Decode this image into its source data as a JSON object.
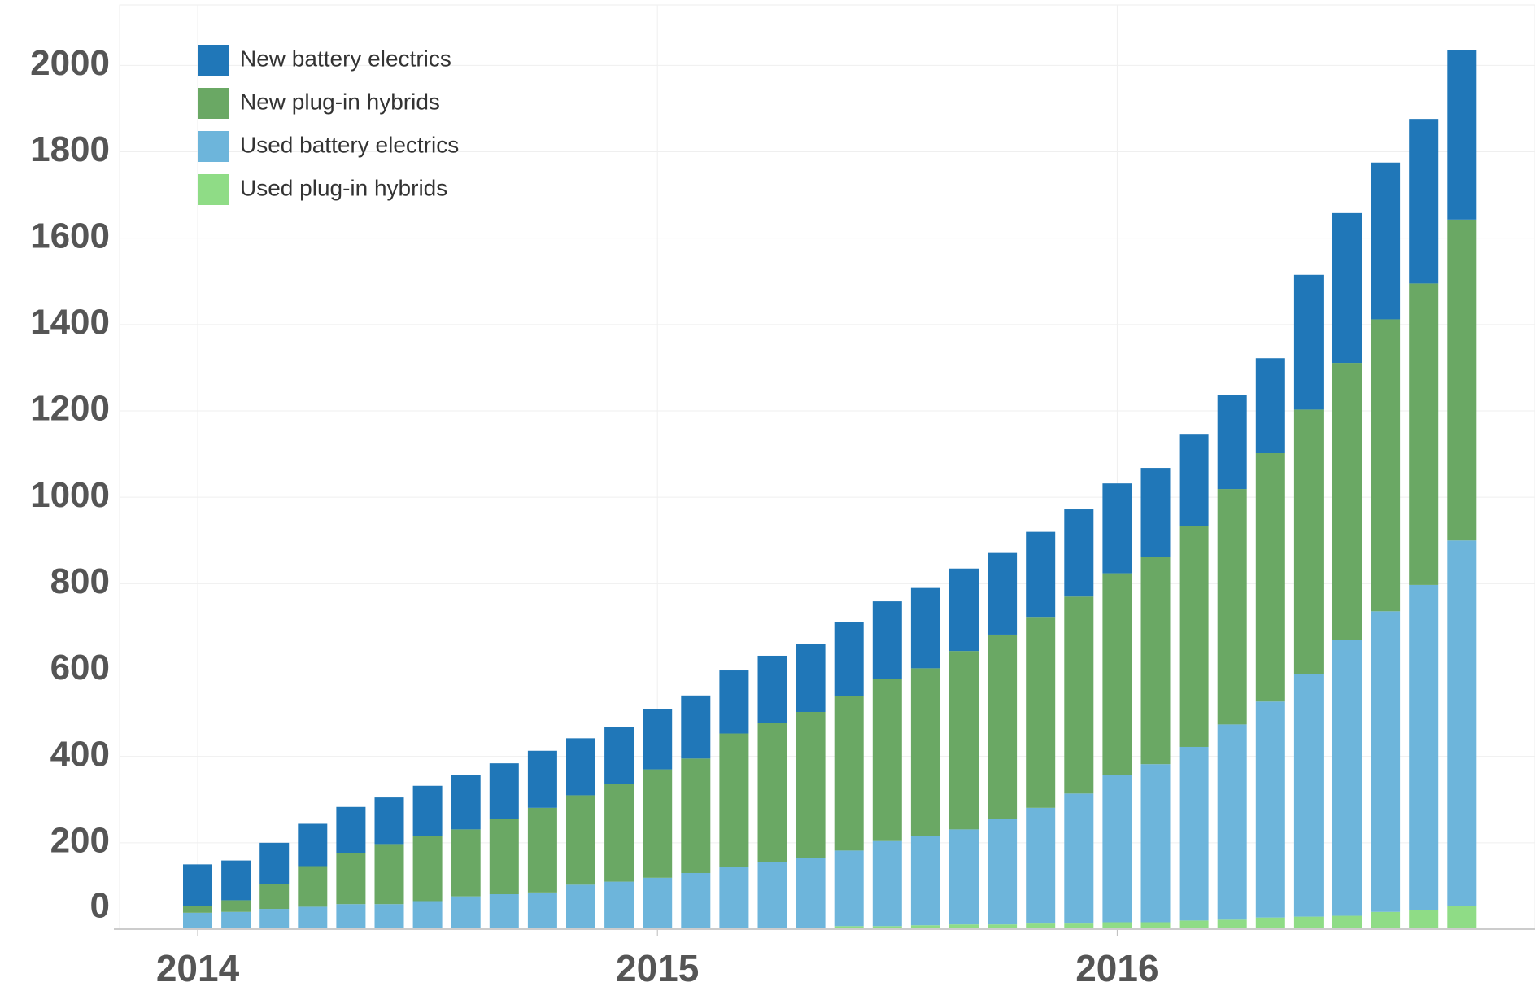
{
  "chart_data": {
    "type": "stacked_bar",
    "categories": [
      "2014",
      null,
      null,
      null,
      null,
      null,
      null,
      null,
      null,
      null,
      null,
      null,
      "2015",
      null,
      null,
      null,
      null,
      null,
      null,
      null,
      null,
      null,
      null,
      null,
      "2016",
      null,
      null,
      null,
      null,
      null,
      null,
      null,
      null,
      null
    ],
    "series": [
      {
        "name": "New battery electrics",
        "color": "#2077b8",
        "values": [
          96,
          92,
          95,
          98,
          106,
          108,
          117,
          126,
          128,
          132,
          132,
          132,
          139,
          146,
          146,
          155,
          157,
          172,
          180,
          186,
          191,
          189,
          197,
          202,
          208,
          206,
          211,
          218,
          220,
          312,
          347,
          363,
          381,
          392
        ]
      },
      {
        "name": "New plug-in hybrids",
        "color": "#6aa864",
        "values": [
          16,
          27,
          58,
          94,
          119,
          139,
          150,
          155,
          175,
          196,
          207,
          227,
          251,
          265,
          309,
          323,
          339,
          357,
          375,
          389,
          413,
          426,
          442,
          456,
          467,
          480,
          512,
          545,
          575,
          613,
          642,
          676,
          698,
          743
        ]
      },
      {
        "name": "Used battery electrics",
        "color": "#6db5db",
        "values": [
          38,
          40,
          47,
          52,
          58,
          58,
          65,
          76,
          81,
          85,
          103,
          110,
          119,
          130,
          144,
          155,
          164,
          175,
          197,
          206,
          220,
          245,
          268,
          301,
          341,
          366,
          402,
          452,
          500,
          561,
          638,
          696,
          752,
          846
        ]
      },
      {
        "name": "Used plug-in hybrids",
        "color": "#8fdc86",
        "values": [
          0,
          0,
          0,
          0,
          0,
          0,
          0,
          0,
          0,
          0,
          0,
          0,
          0,
          0,
          0,
          0,
          0,
          7,
          7,
          9,
          11,
          11,
          13,
          13,
          16,
          16,
          20,
          22,
          27,
          29,
          31,
          40,
          45,
          54
        ]
      }
    ],
    "ylim": [
      0,
      2140
    ],
    "yticks": [
      0,
      200,
      400,
      600,
      800,
      1000,
      1200,
      1400,
      1600,
      1800,
      2000
    ],
    "grid": true,
    "legend": "top-left"
  }
}
